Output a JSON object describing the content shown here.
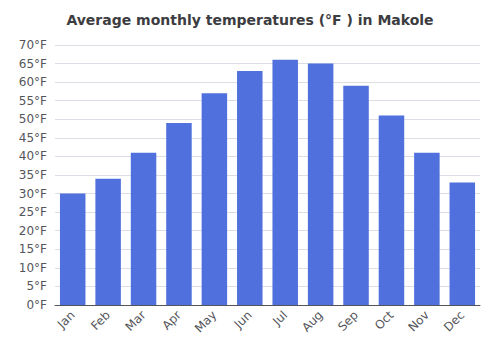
{
  "chart_data": {
    "type": "bar",
    "title": "Average monthly temperatures (°F ) in Makole",
    "categories": [
      "Jan",
      "Feb",
      "Mar",
      "Apr",
      "May",
      "Jun",
      "Jul",
      "Aug",
      "Sep",
      "Oct",
      "Nov",
      "Dec"
    ],
    "values": [
      30,
      34,
      41,
      49,
      57,
      63,
      66,
      65,
      59,
      51,
      41,
      33
    ],
    "ylim": [
      0,
      70
    ],
    "yticks": [
      {
        "value": 0,
        "label": "0°F"
      },
      {
        "value": 5,
        "label": "5°F"
      },
      {
        "value": 10,
        "label": "10°F"
      },
      {
        "value": 15,
        "label": "15°F"
      },
      {
        "value": 20,
        "label": "20°F"
      },
      {
        "value": 25,
        "label": "25°F"
      },
      {
        "value": 30,
        "label": "30°F"
      },
      {
        "value": 35,
        "label": "35°F"
      },
      {
        "value": 40,
        "label": "40°F"
      },
      {
        "value": 45,
        "label": "45°F"
      },
      {
        "value": 50,
        "label": "50°F"
      },
      {
        "value": 55,
        "label": "55°F"
      },
      {
        "value": 60,
        "label": "60°F"
      },
      {
        "value": 65,
        "label": "65°F"
      },
      {
        "value": 70,
        "label": "70°F"
      }
    ],
    "grid": true
  }
}
